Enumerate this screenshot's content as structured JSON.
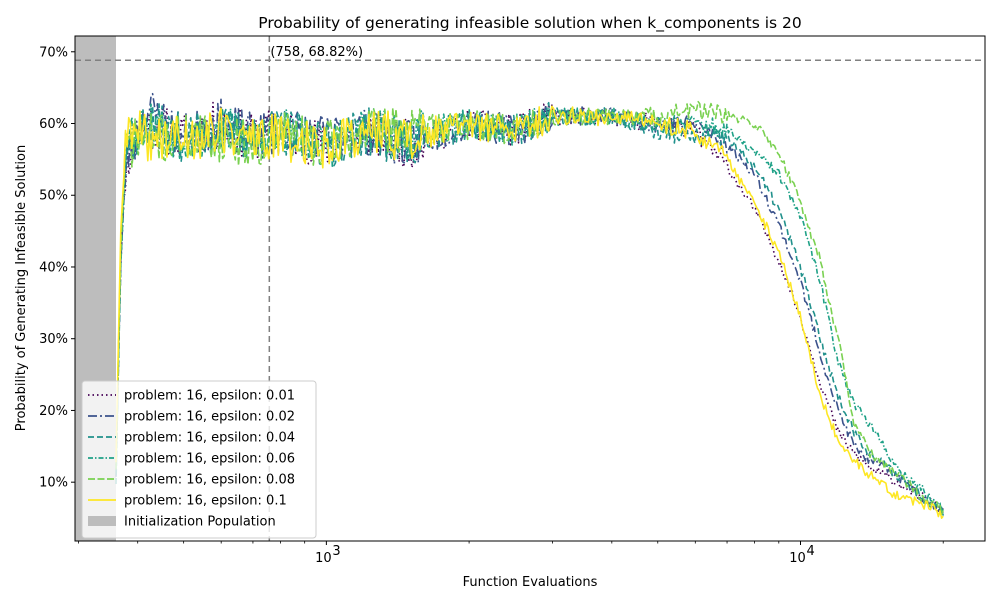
{
  "chart_data": {
    "type": "line",
    "title": "Probability of generating infeasible solution when k_components is 20",
    "xlabel": "Function Evaluations",
    "ylabel": "Probability of Generating Infeasible Solution",
    "xscale": "log",
    "xlim": [
      295,
      24500
    ],
    "ylim": [
      1.8,
      72.2
    ],
    "x_ticks": [
      {
        "value": 1000,
        "label": "10",
        "exp": "3"
      },
      {
        "value": 10000,
        "label": "10",
        "exp": "4"
      }
    ],
    "y_ticks": [
      {
        "value": 10,
        "label": "10%"
      },
      {
        "value": 20,
        "label": "20%"
      },
      {
        "value": 30,
        "label": "30%"
      },
      {
        "value": 40,
        "label": "40%"
      },
      {
        "value": 50,
        "label": "50%"
      },
      {
        "value": 60,
        "label": "60%"
      },
      {
        "value": 70,
        "label": "70%"
      }
    ],
    "init_region": [
      295,
      360
    ],
    "max_point": {
      "x": 758,
      "y": 68.82,
      "label": "(758, 68.82%)"
    },
    "legend_position": "lower left",
    "series": [
      {
        "name": "problem: 16, epsilon: 0.01",
        "color": "#440154",
        "dash": "dotted",
        "seed": 11,
        "points": [
          [
            360,
            12
          ],
          [
            368,
            40
          ],
          [
            378,
            55
          ],
          [
            420,
            60
          ],
          [
            500,
            58
          ],
          [
            600,
            60
          ],
          [
            700,
            58
          ],
          [
            800,
            59
          ],
          [
            1000,
            57
          ],
          [
            1200,
            59
          ],
          [
            1500,
            57
          ],
          [
            2000,
            60
          ],
          [
            2500,
            59
          ],
          [
            3000,
            61
          ],
          [
            4000,
            61
          ],
          [
            5000,
            60
          ],
          [
            6000,
            59
          ],
          [
            7000,
            54
          ],
          [
            8000,
            48
          ],
          [
            9000,
            41
          ],
          [
            10000,
            33
          ],
          [
            11000,
            24
          ],
          [
            12000,
            17
          ],
          [
            13000,
            14
          ],
          [
            14000,
            12
          ],
          [
            16000,
            10
          ],
          [
            18000,
            8
          ],
          [
            20000,
            6
          ]
        ]
      },
      {
        "name": "problem: 16, epsilon: 0.02",
        "color": "#3b528b",
        "dash": "dashdot",
        "seed": 23,
        "points": [
          [
            360,
            11
          ],
          [
            368,
            40
          ],
          [
            378,
            55
          ],
          [
            420,
            62
          ],
          [
            500,
            58
          ],
          [
            600,
            60
          ],
          [
            700,
            58
          ],
          [
            800,
            59
          ],
          [
            1000,
            58
          ],
          [
            1200,
            59
          ],
          [
            1500,
            57
          ],
          [
            2000,
            60
          ],
          [
            2500,
            59
          ],
          [
            3000,
            61
          ],
          [
            4000,
            61
          ],
          [
            5000,
            60
          ],
          [
            6000,
            60
          ],
          [
            7000,
            57
          ],
          [
            8000,
            53
          ],
          [
            9000,
            46
          ],
          [
            10000,
            38
          ],
          [
            11000,
            28
          ],
          [
            12000,
            20
          ],
          [
            13000,
            15
          ],
          [
            14000,
            13
          ],
          [
            16000,
            11
          ],
          [
            18000,
            8
          ],
          [
            20000,
            6
          ]
        ]
      },
      {
        "name": "problem: 16, epsilon: 0.04",
        "color": "#21918c",
        "dash": "dashed",
        "seed": 37,
        "points": [
          [
            360,
            10
          ],
          [
            368,
            40
          ],
          [
            378,
            57
          ],
          [
            420,
            60
          ],
          [
            500,
            58
          ],
          [
            600,
            59
          ],
          [
            700,
            58
          ],
          [
            800,
            59
          ],
          [
            1000,
            57
          ],
          [
            1200,
            59
          ],
          [
            1500,
            57
          ],
          [
            2000,
            60
          ],
          [
            2500,
            59
          ],
          [
            3000,
            61
          ],
          [
            4000,
            61
          ],
          [
            5000,
            59
          ],
          [
            6000,
            58
          ],
          [
            7000,
            58
          ],
          [
            8000,
            54
          ],
          [
            9000,
            48
          ],
          [
            10000,
            40
          ],
          [
            11000,
            30
          ],
          [
            12000,
            22
          ],
          [
            13000,
            17
          ],
          [
            14000,
            14
          ],
          [
            16000,
            11
          ],
          [
            18000,
            8
          ],
          [
            20000,
            6
          ]
        ]
      },
      {
        "name": "problem: 16, epsilon: 0.06",
        "color": "#1fa187",
        "dash": "dashdot2",
        "seed": 53,
        "points": [
          [
            360,
            12
          ],
          [
            368,
            42
          ],
          [
            378,
            58
          ],
          [
            420,
            60
          ],
          [
            500,
            58
          ],
          [
            600,
            59
          ],
          [
            700,
            58
          ],
          [
            800,
            59
          ],
          [
            1000,
            57
          ],
          [
            1200,
            59
          ],
          [
            1500,
            58
          ],
          [
            2000,
            60
          ],
          [
            2500,
            59
          ],
          [
            3000,
            61
          ],
          [
            4000,
            61
          ],
          [
            5000,
            60
          ],
          [
            6000,
            60
          ],
          [
            7000,
            59
          ],
          [
            8000,
            56
          ],
          [
            9000,
            53
          ],
          [
            10000,
            47
          ],
          [
            11000,
            38
          ],
          [
            12000,
            27
          ],
          [
            13000,
            21
          ],
          [
            14000,
            18
          ],
          [
            16000,
            12
          ],
          [
            18000,
            9
          ],
          [
            20000,
            6
          ]
        ]
      },
      {
        "name": "problem: 16, epsilon: 0.08",
        "color": "#7ad151",
        "dash": "longdash",
        "seed": 71,
        "points": [
          [
            360,
            12
          ],
          [
            368,
            42
          ],
          [
            378,
            57
          ],
          [
            420,
            58
          ],
          [
            500,
            58
          ],
          [
            600,
            58
          ],
          [
            700,
            57
          ],
          [
            800,
            59
          ],
          [
            1000,
            57
          ],
          [
            1200,
            59
          ],
          [
            1500,
            59
          ],
          [
            2000,
            60
          ],
          [
            2500,
            59
          ],
          [
            3000,
            61
          ],
          [
            4000,
            61
          ],
          [
            5000,
            61
          ],
          [
            6000,
            62
          ],
          [
            7000,
            61
          ],
          [
            8000,
            60
          ],
          [
            9000,
            56
          ],
          [
            10000,
            49
          ],
          [
            11000,
            41
          ],
          [
            12000,
            30
          ],
          [
            13000,
            18
          ],
          [
            14000,
            14
          ],
          [
            16000,
            11
          ],
          [
            18000,
            8
          ],
          [
            20000,
            6
          ]
        ]
      },
      {
        "name": "problem: 16, epsilon: 0.1",
        "color": "#fde725",
        "dash": "solid",
        "seed": 89,
        "points": [
          [
            360,
            13
          ],
          [
            368,
            44
          ],
          [
            378,
            59
          ],
          [
            420,
            58
          ],
          [
            500,
            58
          ],
          [
            600,
            59
          ],
          [
            700,
            58
          ],
          [
            800,
            58
          ],
          [
            1000,
            57
          ],
          [
            1200,
            59
          ],
          [
            1500,
            58
          ],
          [
            2000,
            60
          ],
          [
            2500,
            59
          ],
          [
            3000,
            61
          ],
          [
            4000,
            61
          ],
          [
            5000,
            60
          ],
          [
            6000,
            59
          ],
          [
            7000,
            55
          ],
          [
            8000,
            49
          ],
          [
            9000,
            42
          ],
          [
            10000,
            33
          ],
          [
            11000,
            22
          ],
          [
            12000,
            16
          ],
          [
            13000,
            13
          ],
          [
            14000,
            11
          ],
          [
            16000,
            8
          ],
          [
            18000,
            7
          ],
          [
            20000,
            5.5
          ]
        ]
      }
    ],
    "legend_extra": "Initialization Population"
  }
}
